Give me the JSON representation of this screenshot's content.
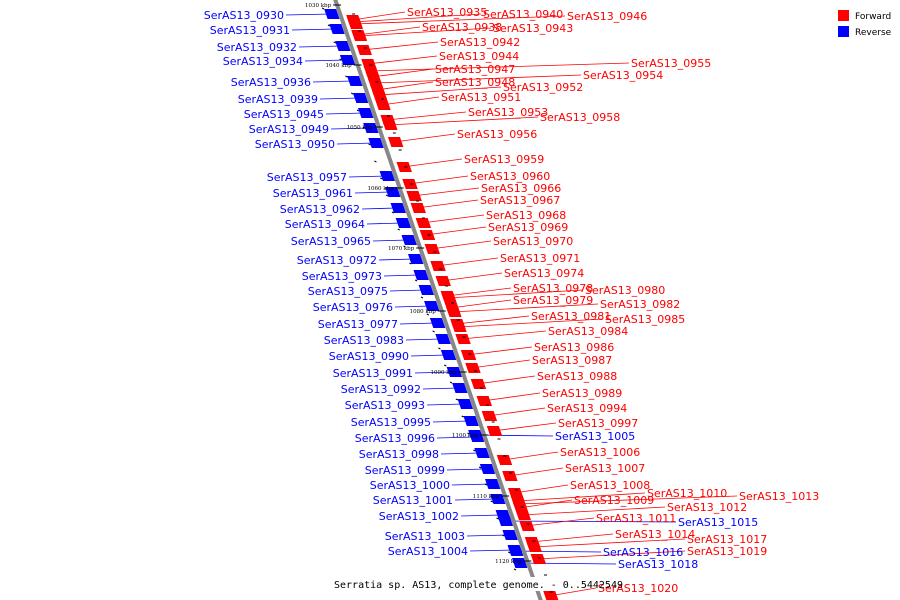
{
  "caption": "Serratia sp. AS13, complete genome. - 0..5442549",
  "colors": {
    "forward": "#ff0000",
    "reverse": "#0000ff",
    "axis": "#888888"
  },
  "legend": [
    {
      "label": "Forward",
      "strand": "forward"
    },
    {
      "label": "Reverse",
      "strand": "reverse"
    }
  ],
  "axis_ticks": [
    {
      "kbp": 1030,
      "label": "1030 kbp"
    },
    {
      "kbp": 1040,
      "label": "1040 kbp"
    },
    {
      "kbp": 1050,
      "label": "1050 kbp"
    },
    {
      "kbp": 1060,
      "label": "1060 kbp"
    },
    {
      "kbp": 1070,
      "label": "1070 kbp"
    },
    {
      "kbp": 1080,
      "label": "1080 kbp"
    },
    {
      "kbp": 1090,
      "label": "1090 kbp"
    },
    {
      "kbp": 1100,
      "label": "1100 kbp"
    },
    {
      "kbp": 1110,
      "label": "1110 kbp"
    },
    {
      "kbp": 1120,
      "label": "1120 kbp"
    }
  ],
  "reverse_genes": [
    "SerAS13_0930",
    "SerAS13_0931",
    "SerAS13_0932",
    "SerAS13_0934",
    "SerAS13_0936",
    "SerAS13_0939",
    "SerAS13_0945",
    "SerAS13_0949",
    "SerAS13_0950",
    "SerAS13_0957",
    "SerAS13_0961",
    "SerAS13_0962",
    "SerAS13_0964",
    "SerAS13_0965",
    "SerAS13_0972",
    "SerAS13_0973",
    "SerAS13_0975",
    "SerAS13_0976",
    "SerAS13_0977",
    "SerAS13_0983",
    "SerAS13_0990",
    "SerAS13_0991",
    "SerAS13_0992",
    "SerAS13_0993",
    "SerAS13_0995",
    "SerAS13_0996",
    "SerAS13_0998",
    "SerAS13_0999",
    "SerAS13_1000",
    "SerAS13_1001",
    "SerAS13_1002",
    "SerAS13_1003",
    "SerAS13_1004",
    "SerAS13_1005",
    "SerAS13_1015",
    "SerAS13_1016",
    "SerAS13_1018"
  ],
  "forward_genes": [
    "SerAS13_0935",
    "SerAS13_0940",
    "SerAS13_0946",
    "SerAS13_0938",
    "SerAS13_0943",
    "SerAS13_0942",
    "SerAS13_0944",
    "SerAS13_0947",
    "SerAS13_0948",
    "SerAS13_0955",
    "SerAS13_0954",
    "SerAS13_0952",
    "SerAS13_0951",
    "SerAS13_0953",
    "SerAS13_0958",
    "SerAS13_0956",
    "SerAS13_0959",
    "SerAS13_0960",
    "SerAS13_0966",
    "SerAS13_0967",
    "SerAS13_0968",
    "SerAS13_0969",
    "SerAS13_0970",
    "SerAS13_0971",
    "SerAS13_0974",
    "SerAS13_0978",
    "SerAS13_0980",
    "SerAS13_0979",
    "SerAS13_0982",
    "SerAS13_0981",
    "SerAS13_0985",
    "SerAS13_0984",
    "SerAS13_0986",
    "SerAS13_0987",
    "SerAS13_0988",
    "SerAS13_0989",
    "SerAS13_0994",
    "SerAS13_0997",
    "SerAS13_1006",
    "SerAS13_1007",
    "SerAS13_1008",
    "SerAS13_1010",
    "SerAS13_1013",
    "SerAS13_1009",
    "SerAS13_1012",
    "SerAS13_1011",
    "SerAS13_1014",
    "SerAS13_1017",
    "SerAS13_1019",
    "SerAS13_1020"
  ]
}
